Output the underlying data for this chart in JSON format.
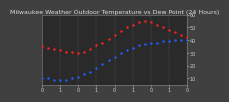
{
  "title": "Milwaukee Weather Outdoor Temperature vs Dew Point (24 Hours)",
  "bg_color": "#404040",
  "plot_bg_color": "#2a2a2a",
  "temp_color": "#ff2020",
  "dew_color": "#2060ff",
  "black_dot_color": "#000000",
  "grid_color": "#606060",
  "ylim": [
    5,
    60
  ],
  "yticks": [
    10,
    20,
    30,
    40,
    50,
    60
  ],
  "xlim": [
    0,
    96
  ],
  "n_points": 97,
  "temp_x": [
    0,
    4,
    8,
    12,
    16,
    20,
    24,
    28,
    32,
    36,
    40,
    44,
    48,
    52,
    56,
    60,
    64,
    68,
    72,
    76,
    80,
    84,
    88,
    92,
    96
  ],
  "temp_y": [
    35,
    34,
    33,
    32,
    31,
    31,
    30,
    31,
    33,
    36,
    38,
    41,
    44,
    47,
    50,
    52,
    54,
    55,
    54,
    52,
    50,
    48,
    46,
    44,
    42
  ],
  "dew_x": [
    0,
    4,
    8,
    12,
    16,
    20,
    24,
    28,
    32,
    36,
    40,
    44,
    48,
    52,
    56,
    60,
    64,
    68,
    72,
    76,
    80,
    84,
    88,
    92,
    96
  ],
  "dew_y": [
    10,
    10,
    9,
    9,
    9,
    10,
    11,
    13,
    15,
    18,
    21,
    24,
    27,
    30,
    32,
    34,
    36,
    37,
    38,
    38,
    39,
    39,
    40,
    40,
    40
  ],
  "xlabel": "",
  "ylabel": "",
  "title_fontsize": 4.5,
  "tick_fontsize": 3.5
}
